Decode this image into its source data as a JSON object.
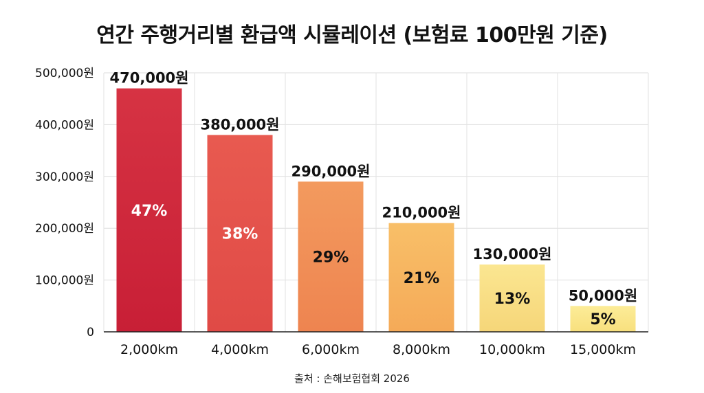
{
  "title": "연간 주행거리별 환급액 시뮬레이션 (보험료 100만원 기준)",
  "source": "출처 : 손해보험협회 2026",
  "chart_data": {
    "type": "bar",
    "categories": [
      "2,000km",
      "4,000km",
      "6,000km",
      "8,000km",
      "10,000km",
      "15,000km"
    ],
    "values": [
      470000,
      380000,
      290000,
      210000,
      130000,
      50000
    ],
    "value_labels": [
      "470,000원",
      "380,000원",
      "290,000원",
      "210,000원",
      "130,000원",
      "50,000원"
    ],
    "percent_labels": [
      "47%",
      "38%",
      "29%",
      "21%",
      "13%",
      "5%"
    ],
    "ylim": [
      0,
      500000
    ],
    "yticks": [
      0,
      100000,
      200000,
      300000,
      400000,
      500000
    ],
    "ytick_labels": [
      "0",
      "100,000원",
      "200,000원",
      "300,000원",
      "400,000원",
      "500,000원"
    ],
    "grid": true,
    "bar_colors": [
      [
        "#d63343",
        "#c81f36"
      ],
      [
        "#e85a50",
        "#e04a46"
      ],
      [
        "#f39a5e",
        "#ee8450"
      ],
      [
        "#f8bf68",
        "#f5aa58"
      ],
      [
        "#fbe691",
        "#f6d679"
      ],
      [
        "#fcec97",
        "#f8e07e"
      ]
    ],
    "percent_label_colors": [
      "#ffffff",
      "#ffffff",
      "#111111",
      "#111111",
      "#111111",
      "#111111"
    ]
  }
}
